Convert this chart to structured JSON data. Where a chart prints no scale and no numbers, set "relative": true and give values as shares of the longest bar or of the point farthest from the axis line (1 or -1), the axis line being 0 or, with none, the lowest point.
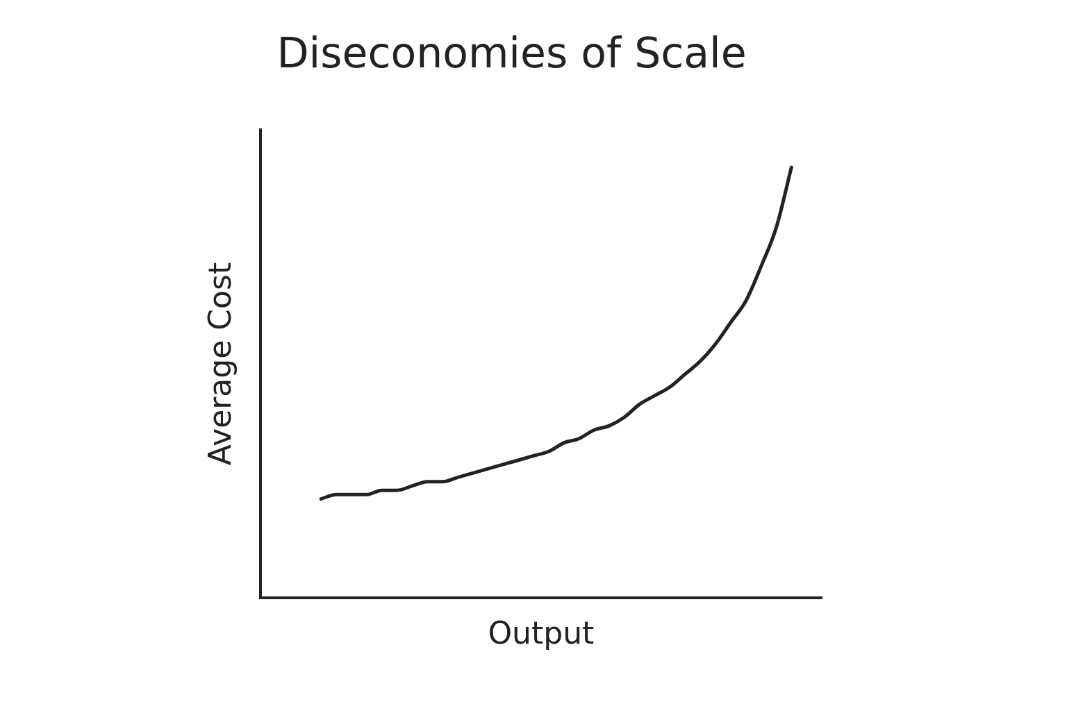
{
  "chart_data": {
    "type": "line",
    "title": "Diseconomies of Scale",
    "xlabel": "Output",
    "ylabel": "Average Cost",
    "relative": true,
    "categories": [
      null,
      null,
      null,
      null,
      null,
      null,
      null,
      null,
      null,
      null,
      null,
      null,
      null,
      null,
      null,
      null,
      null,
      null,
      null,
      null,
      null,
      null,
      null,
      null,
      null,
      null,
      null,
      null,
      null,
      null,
      null,
      null,
      null,
      null,
      null,
      null,
      null,
      null
    ],
    "series": [
      {
        "color": "#222222",
        "values": [
          null,
          null,
          null,
          null,
          0.23,
          0.24,
          0.24,
          0.24,
          0.25,
          0.25,
          0.26,
          0.27,
          0.27,
          0.28,
          0.29,
          0.3,
          0.31,
          0.32,
          0.33,
          0.34,
          0.36,
          0.37,
          0.39,
          0.4,
          0.42,
          0.45,
          0.47,
          0.49,
          0.52,
          0.55,
          0.59,
          0.64,
          0.69,
          0.77,
          0.86,
          1,
          null,
          null
        ]
      }
    ]
  }
}
